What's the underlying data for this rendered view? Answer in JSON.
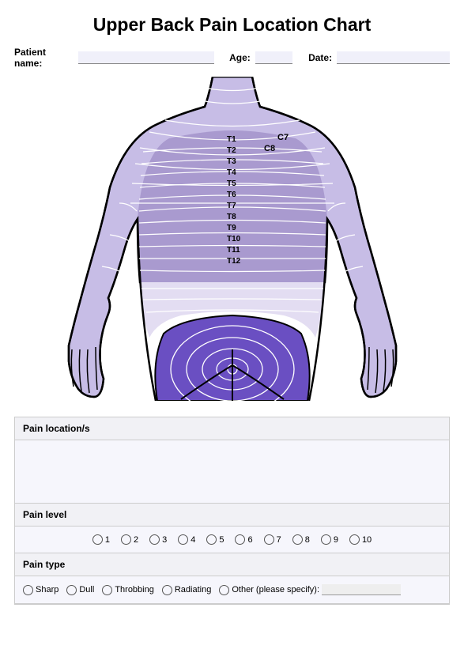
{
  "title": "Upper Back Pain Location Chart",
  "fields": {
    "patient_name_label": "Patient name:",
    "age_label": "Age:",
    "date_label": "Date:"
  },
  "diagram": {
    "outline_color": "#000000",
    "outline_width": 2.5,
    "contour_color": "#ffffff",
    "contour_width": 1.2,
    "region_colors": {
      "upper": "#c7bde6",
      "thoracic": "#a99acf",
      "waist": "#e3ddf2",
      "pelvis": "#6a4fc2"
    },
    "background": "#ffffff",
    "spine_label_fontsize": 10,
    "spine_label_weight": "bold",
    "spine_labels": [
      "T1",
      "T2",
      "T3",
      "T4",
      "T5",
      "T6",
      "T7",
      "T8",
      "T9",
      "T10",
      "T11",
      "T12"
    ],
    "cervical_labels": [
      "C7",
      "C8"
    ]
  },
  "sections": {
    "pain_location": {
      "header": "Pain location/s"
    },
    "pain_level": {
      "header": "Pain level",
      "options": [
        "1",
        "2",
        "3",
        "4",
        "5",
        "6",
        "7",
        "8",
        "9",
        "10"
      ]
    },
    "pain_type": {
      "header": "Pain type",
      "options": [
        "Sharp",
        "Dull",
        "Throbbing",
        "Radiating"
      ],
      "other_label": "Other (please specify):"
    }
  },
  "panel": {
    "border_color": "#cccccc",
    "header_bg": "#f1f1f5",
    "body_bg": "#f6f6fc"
  }
}
